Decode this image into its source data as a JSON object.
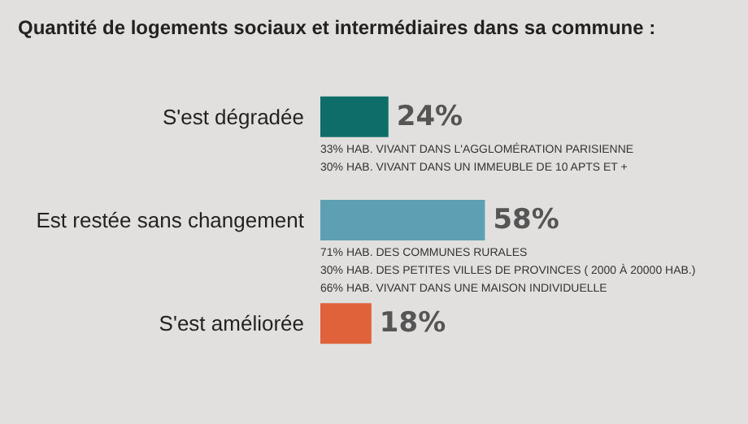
{
  "chart_data": {
    "type": "bar",
    "orientation": "horizontal",
    "title": "Quantité de logements sociaux et intermédiaires dans sa commune :",
    "categories": [
      "S'est dégradée",
      "Est restée sans changement",
      "S'est améliorée"
    ],
    "values": [
      24,
      58,
      18
    ],
    "colors": [
      "#0f6d69",
      "#5f9fb3",
      "#e0623b"
    ],
    "value_labels": [
      "24%",
      "58%",
      "18%"
    ],
    "annotations": [
      "33% HAB. VIVANT DANS L'AGGLOMÉRATION PARISIENNE\n30% HAB. VIVANT DANS UN IMMEUBLE DE 10 APTS ET +",
      "71% HAB. DES COMMUNES RURALES\n30% HAB. DES PETITES VILLES DE PROVINCES ( 2000 À 20000 HAB.)\n66% HAB. VIVANT DANS UNE MAISON INDIVIDUELLE"
    ]
  }
}
